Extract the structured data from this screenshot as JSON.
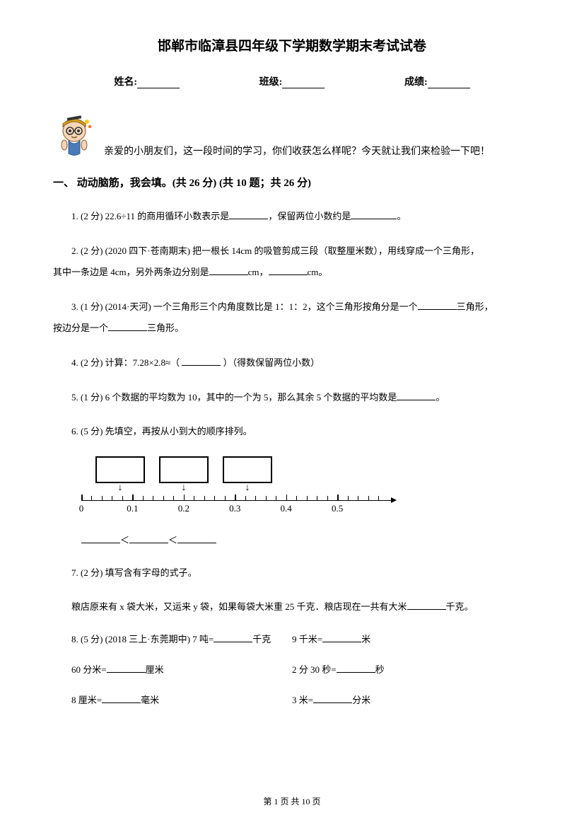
{
  "title": "邯郸市临漳县四年级下学期数学期末考试试卷",
  "info": {
    "name_label": "姓名:",
    "class_label": "班级:",
    "score_label": "成绩:"
  },
  "greeting": "亲爱的小朋友们，这一段时间的学习，你们收获怎么样呢？今天就让我们来检验一下吧！",
  "section1": {
    "header": "一、 动动脑筋，我会填。(共 26 分)  (共 10 题；共 26 分)"
  },
  "q1": {
    "prefix": "1.  (2 分)  22.6÷11 的商用循环小数表示是",
    "mid": "，保留两位小数约是",
    "suffix": "。"
  },
  "q2": {
    "prefix": "2.  (2 分)  (2020 四下·苍南期末) 把一根长 14cm 的吸管剪成三段（取整厘米数），用线穿成一个三角形，",
    "line2_prefix": "其中一条边是 4cm，另外两条边分别是",
    "mid": "cm，",
    "suffix": "cm。"
  },
  "q3": {
    "prefix": "3.  (1 分)  (2014·天河)  一个三角形三个内角度数比是 1：1：2，这个三角形按角分是一个",
    "mid": "三角形，",
    "line2_prefix": "按边分是一个",
    "suffix": "三角形。"
  },
  "q4": {
    "prefix": "4.  (2 分)  计算：7.28×2.8≈（      ",
    "suffix": "      ）（得数保留两位小数）"
  },
  "q5": {
    "prefix": "5.  (1 分)  6 个数据的平均数为 10，其中的一个为 5，那么其余 5 个数据的平均数是",
    "suffix": "。"
  },
  "q6": {
    "text": "6.  (5 分)  先填空，再按从小到大的顺序排列。"
  },
  "number_line": {
    "labels": [
      "0",
      "0.1",
      "0.2",
      "0.3",
      "0.4",
      "0.5"
    ],
    "tick_count": 30,
    "major_positions": [
      0,
      5,
      10,
      15,
      20,
      25
    ],
    "box_arrow_positions": [
      55,
      145,
      235
    ]
  },
  "compare": {
    "lt1": "＜",
    "lt2": "＜"
  },
  "q7": {
    "text": "7.  (2 分)  填写含有字母的式子。",
    "line2_prefix": "粮店原来有 x 袋大米，又运来 y 袋，如果每袋大米重 25 千克．粮店现在一共有大米",
    "suffix": "千克。"
  },
  "q8": {
    "prefix": "8.  (5 分)  (2018 三上·东莞期中)  7 吨=",
    "mid": "千克",
    "item2_prefix": "9 千米=",
    "item2_suffix": "米"
  },
  "q8b": {
    "item1_prefix": "60 分米=",
    "item1_suffix": "厘米",
    "item2_prefix": "2 分 30 秒=",
    "item2_suffix": "秒"
  },
  "q8c": {
    "item1_prefix": "8 厘米=",
    "item1_suffix": "毫米",
    "item2_prefix": "3 米=",
    "item2_suffix": "分米"
  },
  "footer": "第 1 页 共 10 页"
}
